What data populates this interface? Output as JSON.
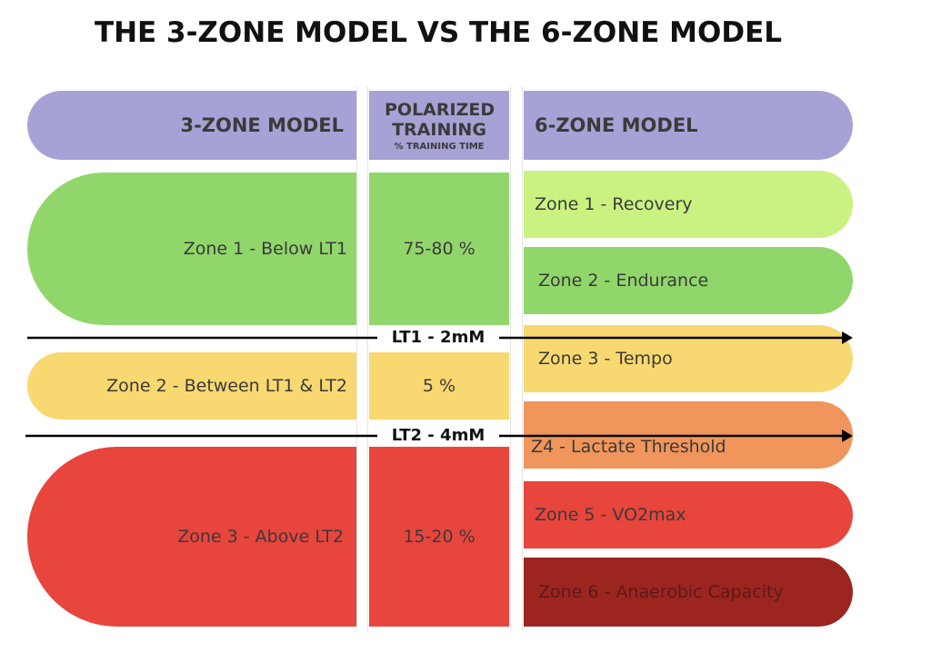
{
  "title": "THE 3-ZONE MODEL VS THE 6-ZONE MODEL",
  "header": {
    "left": "3-ZONE MODEL",
    "middle": {
      "title": "POLARIZED TRAINING",
      "subtitle": "% TRAINING TIME"
    },
    "right": "6-ZONE MODEL"
  },
  "three_zone": [
    {
      "label": "Zone 1 - Below LT1",
      "share": "75-80 %"
    },
    {
      "label": "Zone 2 - Between LT1 & LT2",
      "share": "5 %"
    },
    {
      "label": "Zone 3 - Above LT2",
      "share": "15-20 %"
    }
  ],
  "six_zone": [
    "Zone 1 - Recovery",
    "Zone 2 - Endurance",
    "Zone 3 - Tempo",
    "Z4 - Lactate Threshold",
    "Zone 5 - VO2max",
    "Zone 6 - Anaerobic Capacity"
  ],
  "thresholds": [
    "LT1 - 2mM",
    "LT2 - 4mM"
  ]
}
